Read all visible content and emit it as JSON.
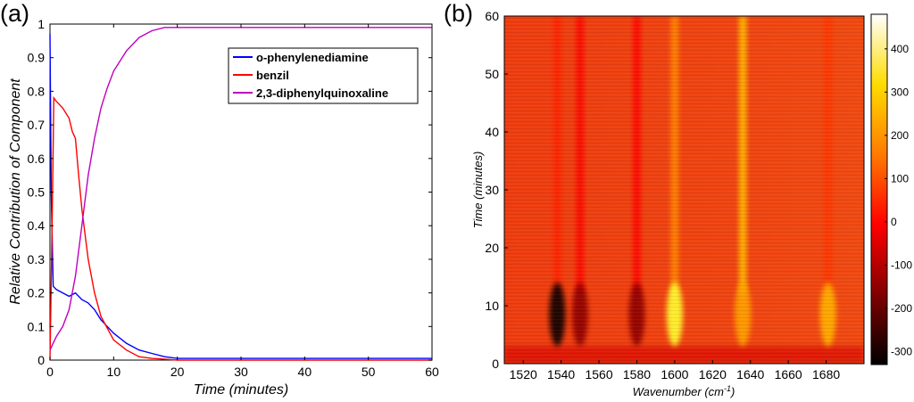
{
  "panels": {
    "a": {
      "label": "(a)"
    },
    "b": {
      "label": "(b)"
    }
  },
  "chart_data": [
    {
      "type": "line",
      "panel": "(a)",
      "xlabel": "Time (minutes)",
      "ylabel": "Relative Contribution of Component",
      "xlim": [
        0,
        60
      ],
      "ylim": [
        0,
        1
      ],
      "xticks": [
        0,
        10,
        20,
        30,
        40,
        50,
        60
      ],
      "yticks": [
        0,
        0.1,
        0.2,
        0.3,
        0.4,
        0.5,
        0.6,
        0.7,
        0.8,
        0.9,
        1
      ],
      "legend_position": "top-right",
      "series": [
        {
          "name": "o-phenylenediamine",
          "color": "#0000ff",
          "x": [
            0,
            0.2,
            0.5,
            1,
            2,
            3,
            4,
            5,
            6,
            7,
            8,
            9,
            10,
            12,
            14,
            16,
            18,
            20,
            25,
            30,
            40,
            50,
            60
          ],
          "y": [
            0.97,
            0.5,
            0.22,
            0.21,
            0.2,
            0.19,
            0.2,
            0.18,
            0.17,
            0.15,
            0.12,
            0.1,
            0.08,
            0.05,
            0.03,
            0.02,
            0.01,
            0.005,
            0.005,
            0.005,
            0.005,
            0.005,
            0.005
          ]
        },
        {
          "name": "benzil",
          "color": "#ff0000",
          "x": [
            0,
            0.3,
            0.6,
            1,
            2,
            3,
            3.5,
            4,
            4.5,
            5,
            6,
            7,
            8,
            10,
            12,
            14,
            16,
            18,
            20,
            30,
            40,
            50,
            60
          ],
          "y": [
            0.0,
            0.35,
            0.78,
            0.77,
            0.75,
            0.72,
            0.68,
            0.66,
            0.55,
            0.45,
            0.3,
            0.2,
            0.13,
            0.06,
            0.03,
            0.01,
            0.005,
            0.003,
            0.0,
            0.0,
            0.0,
            0.0,
            0.0
          ]
        },
        {
          "name": "2,3-diphenylquinoxaline",
          "color": "#bf00bf",
          "x": [
            0,
            1,
            2,
            3,
            4,
            5,
            6,
            7,
            8,
            9,
            10,
            12,
            14,
            16,
            18,
            20,
            25,
            30,
            40,
            50,
            60
          ],
          "y": [
            0.03,
            0.07,
            0.1,
            0.15,
            0.25,
            0.4,
            0.55,
            0.66,
            0.75,
            0.81,
            0.86,
            0.92,
            0.96,
            0.98,
            0.99,
            0.99,
            0.99,
            0.99,
            0.99,
            0.99,
            0.99
          ]
        }
      ]
    },
    {
      "type": "heatmap",
      "panel": "(b)",
      "xlabel": "Wavenumber (cm",
      "xlabel_sup": "-1",
      "xlabel_end": ")",
      "ylabel": "Time (minutes)",
      "xlim": [
        1510,
        1700
      ],
      "ylim": [
        0,
        60
      ],
      "xticks": [
        1520,
        1540,
        1560,
        1580,
        1600,
        1620,
        1640,
        1660,
        1680
      ],
      "yticks": [
        0,
        10,
        20,
        30,
        40,
        50,
        60
      ],
      "colorbar": {
        "range": [
          -330,
          480
        ],
        "ticks": [
          -300,
          -200,
          -100,
          0,
          100,
          200,
          300,
          400
        ],
        "colormap": "hot"
      },
      "bands": [
        {
          "wavenumber": 1538,
          "early_value": -320,
          "late_value": 40
        },
        {
          "wavenumber": 1550,
          "early_value": -150,
          "late_value": 0
        },
        {
          "wavenumber": 1580,
          "early_value": -150,
          "late_value": 0
        },
        {
          "wavenumber": 1600,
          "early_value": 350,
          "late_value": 180
        },
        {
          "wavenumber": 1636,
          "early_value": 200,
          "late_value": 250
        },
        {
          "wavenumber": 1681,
          "early_value": 220,
          "late_value": 60
        }
      ]
    }
  ]
}
